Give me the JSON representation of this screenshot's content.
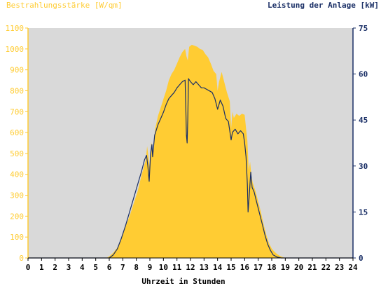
{
  "colors": {
    "left_axis": "#ffcc33",
    "right_axis": "#1a2f66",
    "plot_bg": "#d9d9d9",
    "irradiance_fill": "#ffcc33",
    "power_line": "#1a2f66"
  },
  "chart_data": {
    "type": "area",
    "left_axis_title": "Bestrahlungsstärke [W/qm]",
    "right_axis_title": "Leistung der Anlage [kW]",
    "xlabel": "Uhrzeit in Stunden",
    "xlim": [
      0,
      24
    ],
    "ylim_left": [
      0,
      1100
    ],
    "ylim_right": [
      0,
      75
    ],
    "x_ticks": [
      "0",
      "1",
      "2",
      "3",
      "4",
      "5",
      "6",
      "7",
      "8",
      "9",
      "10",
      "11",
      "12",
      "13",
      "14",
      "15",
      "16",
      "17",
      "18",
      "19",
      "20",
      "21",
      "22",
      "23",
      "24"
    ],
    "y_left_ticks": [
      "0",
      "100",
      "200",
      "300",
      "400",
      "500",
      "600",
      "700",
      "800",
      "900",
      "1000",
      "1100"
    ],
    "y_right_ticks": [
      "0",
      "15",
      "30",
      "45",
      "60",
      "75"
    ],
    "series": [
      {
        "name": "Bestrahlungsstärke",
        "axis": "left",
        "type": "area",
        "points": [
          [
            0,
            0
          ],
          [
            5.8,
            0
          ],
          [
            6.0,
            8
          ],
          [
            6.3,
            25
          ],
          [
            6.6,
            50
          ],
          [
            6.9,
            95
          ],
          [
            7.2,
            150
          ],
          [
            7.5,
            200
          ],
          [
            7.8,
            260
          ],
          [
            8.1,
            320
          ],
          [
            8.4,
            400
          ],
          [
            8.7,
            470
          ],
          [
            8.8,
            535
          ],
          [
            8.9,
            480
          ],
          [
            9.0,
            420
          ],
          [
            9.1,
            555
          ],
          [
            9.2,
            500
          ],
          [
            9.4,
            620
          ],
          [
            9.6,
            680
          ],
          [
            9.8,
            720
          ],
          [
            10.0,
            760
          ],
          [
            10.2,
            800
          ],
          [
            10.4,
            850
          ],
          [
            10.6,
            880
          ],
          [
            10.8,
            900
          ],
          [
            11.0,
            930
          ],
          [
            11.2,
            960
          ],
          [
            11.4,
            985
          ],
          [
            11.6,
            1000
          ],
          [
            11.7,
            965
          ],
          [
            11.8,
            945
          ],
          [
            11.9,
            1010
          ],
          [
            12.1,
            1020
          ],
          [
            12.3,
            1015
          ],
          [
            12.5,
            1010
          ],
          [
            12.7,
            1000
          ],
          [
            12.9,
            995
          ],
          [
            13.1,
            975
          ],
          [
            13.3,
            960
          ],
          [
            13.5,
            930
          ],
          [
            13.7,
            895
          ],
          [
            13.9,
            880
          ],
          [
            14.0,
            800
          ],
          [
            14.1,
            840
          ],
          [
            14.3,
            890
          ],
          [
            14.5,
            840
          ],
          [
            14.7,
            790
          ],
          [
            14.9,
            750
          ],
          [
            15.0,
            620
          ],
          [
            15.1,
            700
          ],
          [
            15.2,
            670
          ],
          [
            15.4,
            690
          ],
          [
            15.6,
            680
          ],
          [
            15.8,
            690
          ],
          [
            16.0,
            685
          ],
          [
            16.1,
            620
          ],
          [
            16.2,
            560
          ],
          [
            16.3,
            420
          ],
          [
            16.4,
            460
          ],
          [
            16.5,
            390
          ],
          [
            16.6,
            360
          ],
          [
            16.8,
            320
          ],
          [
            17.0,
            270
          ],
          [
            17.2,
            220
          ],
          [
            17.4,
            160
          ],
          [
            17.6,
            110
          ],
          [
            17.8,
            70
          ],
          [
            18.0,
            45
          ],
          [
            18.2,
            30
          ],
          [
            18.4,
            18
          ],
          [
            18.6,
            10
          ],
          [
            18.8,
            4
          ],
          [
            19.0,
            0
          ],
          [
            24,
            0
          ]
        ]
      },
      {
        "name": "Leistung",
        "axis": "right",
        "type": "line",
        "points": [
          [
            0,
            0
          ],
          [
            6.0,
            0
          ],
          [
            6.3,
            1
          ],
          [
            6.6,
            3
          ],
          [
            6.9,
            6.5
          ],
          [
            7.2,
            10.5
          ],
          [
            7.5,
            15
          ],
          [
            7.8,
            19.5
          ],
          [
            8.1,
            24
          ],
          [
            8.4,
            28.5
          ],
          [
            8.6,
            32
          ],
          [
            8.75,
            33.5
          ],
          [
            8.85,
            30
          ],
          [
            8.95,
            25
          ],
          [
            9.05,
            34
          ],
          [
            9.15,
            37
          ],
          [
            9.2,
            33
          ],
          [
            9.35,
            40
          ],
          [
            9.6,
            43.5
          ],
          [
            9.8,
            45.5
          ],
          [
            10.0,
            47.5
          ],
          [
            10.2,
            50
          ],
          [
            10.4,
            52
          ],
          [
            10.6,
            53
          ],
          [
            10.8,
            54
          ],
          [
            11.0,
            55.5
          ],
          [
            11.2,
            56.5
          ],
          [
            11.4,
            57.5
          ],
          [
            11.6,
            58
          ],
          [
            11.65,
            50
          ],
          [
            11.7,
            40
          ],
          [
            11.75,
            37.5
          ],
          [
            11.8,
            45
          ],
          [
            11.85,
            58.5
          ],
          [
            12.0,
            57.5
          ],
          [
            12.2,
            56.5
          ],
          [
            12.4,
            57.5
          ],
          [
            12.6,
            56.5
          ],
          [
            12.8,
            55.5
          ],
          [
            13.0,
            55.5
          ],
          [
            13.2,
            55
          ],
          [
            13.4,
            54.5
          ],
          [
            13.6,
            54
          ],
          [
            13.8,
            52
          ],
          [
            14.0,
            48.5
          ],
          [
            14.2,
            51.5
          ],
          [
            14.4,
            49.5
          ],
          [
            14.6,
            45.5
          ],
          [
            14.8,
            44.5
          ],
          [
            15.0,
            38.5
          ],
          [
            15.1,
            41
          ],
          [
            15.3,
            42
          ],
          [
            15.5,
            40.5
          ],
          [
            15.7,
            41.5
          ],
          [
            15.9,
            40.5
          ],
          [
            16.0,
            37.5
          ],
          [
            16.1,
            33
          ],
          [
            16.2,
            24
          ],
          [
            16.25,
            15
          ],
          [
            16.35,
            21
          ],
          [
            16.45,
            28
          ],
          [
            16.55,
            23
          ],
          [
            16.7,
            21.5
          ],
          [
            16.9,
            18
          ],
          [
            17.1,
            14.5
          ],
          [
            17.3,
            11
          ],
          [
            17.5,
            7.5
          ],
          [
            17.7,
            4.5
          ],
          [
            17.9,
            2.5
          ],
          [
            18.1,
            1
          ],
          [
            18.4,
            0.3
          ],
          [
            18.7,
            0
          ],
          [
            24,
            0
          ]
        ]
      }
    ]
  }
}
